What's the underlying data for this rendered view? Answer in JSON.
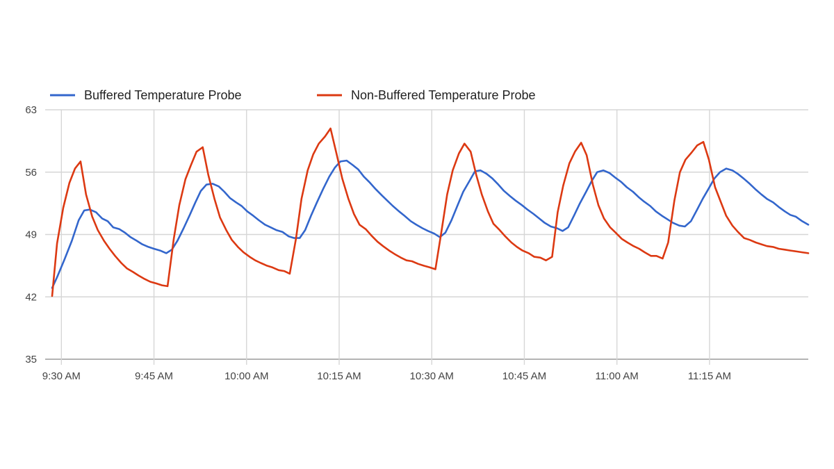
{
  "chart_data": {
    "type": "line",
    "title": "",
    "xlabel": "",
    "ylabel": "",
    "x_unit": "minutes after 9:30 AM",
    "xlim": [
      -1.5,
      121
    ],
    "ylim": [
      35,
      63
    ],
    "y_ticks": [
      35,
      42,
      49,
      56,
      63
    ],
    "x_ticks": [
      {
        "value": 0,
        "label": "9:30 AM"
      },
      {
        "value": 15,
        "label": "9:45 AM"
      },
      {
        "value": 30,
        "label": "10:00 AM"
      },
      {
        "value": 45,
        "label": "10:15 AM"
      },
      {
        "value": 60,
        "label": "10:30 AM"
      },
      {
        "value": 75,
        "label": "10:45 AM"
      },
      {
        "value": 90,
        "label": "11:00 AM"
      },
      {
        "value": 105,
        "label": "11:15 AM"
      }
    ],
    "grid": true,
    "legend_position": "top-left",
    "series": [
      {
        "name": "Buffered Temperature Probe",
        "color": "#3366cc",
        "points": [
          [
            -1.5,
            43
          ],
          [
            -0.7,
            44.2
          ],
          [
            0.5,
            46.2
          ],
          [
            1.7,
            48.3
          ],
          [
            2.8,
            50.6
          ],
          [
            3.7,
            51.7
          ],
          [
            4.6,
            51.8
          ],
          [
            5.6,
            51.5
          ],
          [
            6.6,
            50.8
          ],
          [
            7.5,
            50.5
          ],
          [
            8.4,
            49.8
          ],
          [
            9.4,
            49.6
          ],
          [
            10.3,
            49.2
          ],
          [
            11.2,
            48.7
          ],
          [
            12.2,
            48.3
          ],
          [
            13.1,
            47.9
          ],
          [
            14.1,
            47.6
          ],
          [
            15.0,
            47.4
          ],
          [
            16.0,
            47.2
          ],
          [
            17.0,
            46.9
          ],
          [
            17.9,
            47.3
          ],
          [
            18.8,
            48.3
          ],
          [
            19.8,
            49.7
          ],
          [
            20.8,
            51.2
          ],
          [
            21.7,
            52.6
          ],
          [
            22.6,
            53.9
          ],
          [
            23.5,
            54.6
          ],
          [
            24.5,
            54.7
          ],
          [
            25.5,
            54.4
          ],
          [
            26.4,
            53.8
          ],
          [
            27.3,
            53.1
          ],
          [
            28.3,
            52.6
          ],
          [
            29.2,
            52.2
          ],
          [
            30.1,
            51.6
          ],
          [
            31.1,
            51.1
          ],
          [
            32.0,
            50.6
          ],
          [
            33.0,
            50.1
          ],
          [
            33.9,
            49.8
          ],
          [
            34.8,
            49.5
          ],
          [
            35.8,
            49.3
          ],
          [
            36.8,
            48.8
          ],
          [
            37.7,
            48.6
          ],
          [
            38.6,
            48.6
          ],
          [
            39.5,
            49.5
          ],
          [
            40.5,
            51.2
          ],
          [
            41.4,
            52.6
          ],
          [
            42.4,
            54.1
          ],
          [
            43.4,
            55.5
          ],
          [
            44.3,
            56.5
          ],
          [
            45.2,
            57.2
          ],
          [
            46.2,
            57.3
          ],
          [
            47.2,
            56.8
          ],
          [
            48.1,
            56.3
          ],
          [
            49.0,
            55.5
          ],
          [
            50.0,
            54.8
          ],
          [
            50.9,
            54.1
          ],
          [
            51.9,
            53.4
          ],
          [
            52.8,
            52.8
          ],
          [
            53.7,
            52.2
          ],
          [
            54.7,
            51.6
          ],
          [
            55.6,
            51.1
          ],
          [
            56.6,
            50.5
          ],
          [
            57.5,
            50.1
          ],
          [
            58.5,
            49.7
          ],
          [
            59.4,
            49.4
          ],
          [
            60.4,
            49.1
          ],
          [
            61.3,
            48.7
          ],
          [
            62.2,
            49.2
          ],
          [
            63.2,
            50.6
          ],
          [
            64.2,
            52.3
          ],
          [
            65.1,
            53.8
          ],
          [
            66.1,
            55.0
          ],
          [
            67.0,
            56.1
          ],
          [
            67.9,
            56.2
          ],
          [
            68.9,
            55.8
          ],
          [
            69.8,
            55.3
          ],
          [
            70.8,
            54.6
          ],
          [
            71.7,
            53.9
          ],
          [
            72.7,
            53.3
          ],
          [
            73.6,
            52.8
          ],
          [
            74.6,
            52.3
          ],
          [
            75.5,
            51.8
          ],
          [
            76.5,
            51.3
          ],
          [
            77.4,
            50.8
          ],
          [
            78.3,
            50.3
          ],
          [
            79.3,
            49.9
          ],
          [
            80.3,
            49.7
          ],
          [
            81.2,
            49.4
          ],
          [
            82.1,
            49.8
          ],
          [
            83.1,
            51.2
          ],
          [
            84.0,
            52.5
          ],
          [
            85.0,
            53.8
          ],
          [
            85.9,
            55.0
          ],
          [
            86.8,
            56.0
          ],
          [
            87.8,
            56.2
          ],
          [
            88.8,
            55.9
          ],
          [
            89.7,
            55.4
          ],
          [
            90.7,
            54.9
          ],
          [
            91.6,
            54.3
          ],
          [
            92.6,
            53.8
          ],
          [
            93.5,
            53.2
          ],
          [
            94.4,
            52.7
          ],
          [
            95.4,
            52.2
          ],
          [
            96.3,
            51.6
          ],
          [
            97.3,
            51.1
          ],
          [
            98.2,
            50.7
          ],
          [
            99.1,
            50.3
          ],
          [
            100.1,
            50.0
          ],
          [
            101.0,
            49.9
          ],
          [
            102.0,
            50.5
          ],
          [
            103.0,
            51.8
          ],
          [
            103.9,
            53.0
          ],
          [
            104.9,
            54.2
          ],
          [
            105.8,
            55.3
          ],
          [
            106.7,
            56.0
          ],
          [
            107.7,
            56.4
          ],
          [
            108.7,
            56.2
          ],
          [
            109.6,
            55.8
          ],
          [
            110.5,
            55.3
          ],
          [
            111.5,
            54.7
          ],
          [
            112.4,
            54.1
          ],
          [
            113.4,
            53.5
          ],
          [
            114.3,
            53.0
          ],
          [
            115.3,
            52.6
          ],
          [
            116.2,
            52.1
          ],
          [
            117.2,
            51.6
          ],
          [
            118.1,
            51.2
          ],
          [
            119.0,
            51.0
          ],
          [
            120.0,
            50.5
          ],
          [
            121.0,
            50.1
          ]
        ]
      },
      {
        "name": "Non-Buffered Temperature Probe",
        "color": "#dc3912",
        "points": [
          [
            -1.5,
            42.1
          ],
          [
            -0.7,
            48
          ],
          [
            0.3,
            52
          ],
          [
            1.3,
            54.8
          ],
          [
            2.2,
            56.4
          ],
          [
            3.1,
            57.2
          ],
          [
            4.0,
            53.5
          ],
          [
            5.0,
            51
          ],
          [
            5.9,
            49.5
          ],
          [
            6.9,
            48.3
          ],
          [
            7.8,
            47.4
          ],
          [
            8.7,
            46.6
          ],
          [
            9.7,
            45.8
          ],
          [
            10.6,
            45.2
          ],
          [
            11.6,
            44.8
          ],
          [
            12.5,
            44.4
          ],
          [
            13.5,
            44.0
          ],
          [
            14.4,
            43.7
          ],
          [
            15.4,
            43.5
          ],
          [
            16.3,
            43.3
          ],
          [
            17.2,
            43.2
          ],
          [
            18.2,
            48.5
          ],
          [
            19.1,
            52.3
          ],
          [
            20.1,
            55.2
          ],
          [
            21.0,
            56.8
          ],
          [
            21.9,
            58.3
          ],
          [
            22.9,
            58.8
          ],
          [
            23.8,
            55.7
          ],
          [
            24.8,
            53.0
          ],
          [
            25.7,
            50.9
          ],
          [
            26.7,
            49.5
          ],
          [
            27.6,
            48.4
          ],
          [
            28.6,
            47.6
          ],
          [
            29.5,
            47.0
          ],
          [
            30.5,
            46.5
          ],
          [
            31.4,
            46.1
          ],
          [
            32.3,
            45.8
          ],
          [
            33.3,
            45.5
          ],
          [
            34.2,
            45.3
          ],
          [
            35.2,
            45.0
          ],
          [
            36.1,
            44.9
          ],
          [
            37.0,
            44.6
          ],
          [
            38.0,
            48.5
          ],
          [
            38.9,
            53.0
          ],
          [
            39.9,
            56.2
          ],
          [
            40.8,
            58.0
          ],
          [
            41.7,
            59.2
          ],
          [
            42.7,
            60.0
          ],
          [
            43.6,
            60.9
          ],
          [
            44.6,
            58.0
          ],
          [
            45.5,
            55.3
          ],
          [
            46.5,
            53.0
          ],
          [
            47.4,
            51.3
          ],
          [
            48.3,
            50.1
          ],
          [
            49.3,
            49.6
          ],
          [
            50.2,
            48.9
          ],
          [
            51.2,
            48.2
          ],
          [
            52.1,
            47.7
          ],
          [
            53.1,
            47.2
          ],
          [
            54.0,
            46.8
          ],
          [
            55.0,
            46.4
          ],
          [
            55.9,
            46.1
          ],
          [
            56.8,
            46.0
          ],
          [
            57.8,
            45.7
          ],
          [
            58.7,
            45.5
          ],
          [
            59.7,
            45.3
          ],
          [
            60.6,
            45.1
          ],
          [
            61.5,
            49.0
          ],
          [
            62.5,
            53.5
          ],
          [
            63.4,
            56.2
          ],
          [
            64.4,
            58.1
          ],
          [
            65.3,
            59.2
          ],
          [
            66.3,
            58.3
          ],
          [
            67.2,
            55.7
          ],
          [
            68.1,
            53.5
          ],
          [
            69.1,
            51.6
          ],
          [
            70.0,
            50.2
          ],
          [
            71.0,
            49.5
          ],
          [
            71.9,
            48.8
          ],
          [
            72.9,
            48.1
          ],
          [
            73.8,
            47.6
          ],
          [
            74.7,
            47.2
          ],
          [
            75.7,
            46.9
          ],
          [
            76.6,
            46.5
          ],
          [
            77.6,
            46.4
          ],
          [
            78.5,
            46.1
          ],
          [
            79.5,
            46.5
          ],
          [
            80.4,
            51.5
          ],
          [
            81.3,
            54.5
          ],
          [
            82.3,
            57.0
          ],
          [
            83.2,
            58.3
          ],
          [
            84.2,
            59.3
          ],
          [
            85.1,
            57.9
          ],
          [
            86.1,
            54.6
          ],
          [
            87.0,
            52.3
          ],
          [
            87.9,
            50.8
          ],
          [
            88.9,
            49.8
          ],
          [
            89.8,
            49.2
          ],
          [
            90.8,
            48.5
          ],
          [
            91.7,
            48.1
          ],
          [
            92.7,
            47.7
          ],
          [
            93.6,
            47.4
          ],
          [
            94.5,
            47.0
          ],
          [
            95.5,
            46.6
          ],
          [
            96.4,
            46.6
          ],
          [
            97.4,
            46.3
          ],
          [
            98.3,
            48.1
          ],
          [
            99.3,
            52.8
          ],
          [
            100.2,
            56.0
          ],
          [
            101.1,
            57.4
          ],
          [
            102.1,
            58.2
          ],
          [
            103.0,
            59.0
          ],
          [
            104.0,
            59.4
          ],
          [
            104.9,
            57.4
          ],
          [
            105.9,
            54.3
          ],
          [
            106.8,
            52.7
          ],
          [
            107.7,
            51.1
          ],
          [
            108.7,
            50.0
          ],
          [
            109.6,
            49.3
          ],
          [
            110.6,
            48.6
          ],
          [
            111.5,
            48.4
          ],
          [
            112.5,
            48.1
          ],
          [
            113.4,
            47.9
          ],
          [
            114.3,
            47.7
          ],
          [
            115.3,
            47.6
          ],
          [
            116.2,
            47.4
          ],
          [
            117.2,
            47.3
          ],
          [
            118.1,
            47.2
          ],
          [
            119.1,
            47.1
          ],
          [
            120.0,
            47.0
          ],
          [
            121.0,
            46.9
          ]
        ]
      }
    ]
  }
}
